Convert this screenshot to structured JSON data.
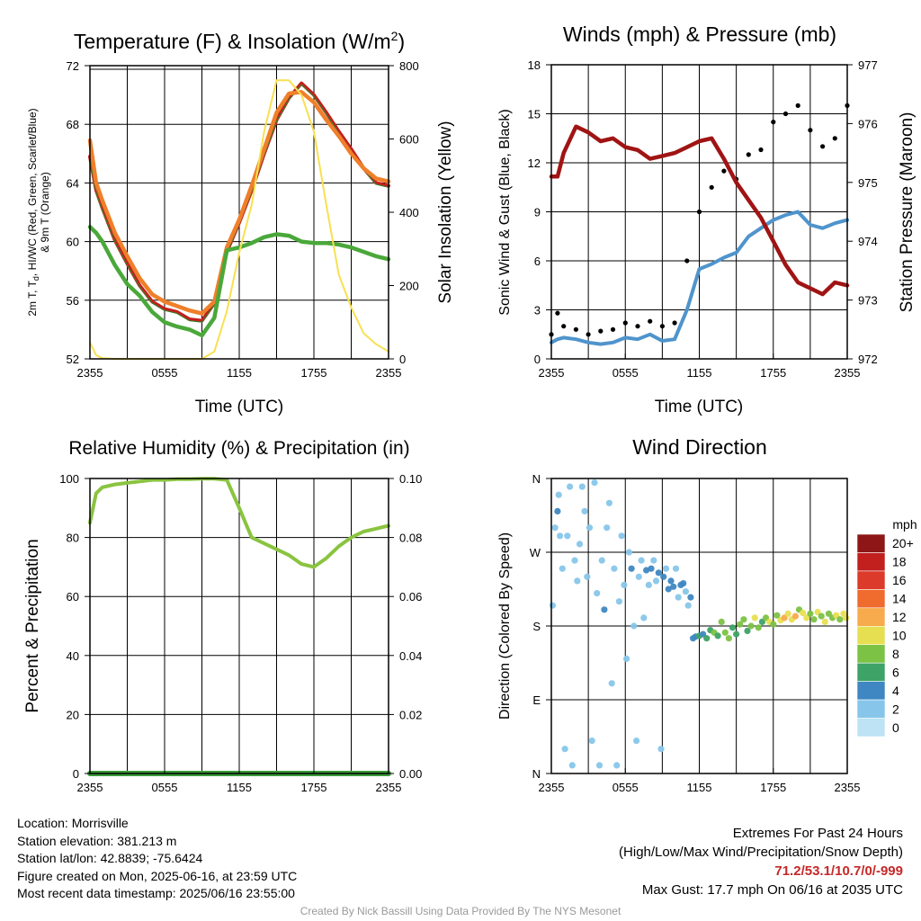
{
  "colors": {
    "temp": "#c41e1e",
    "dewpoint": "#4aa83a",
    "heat_index": "#2a8a2a",
    "t9m": "#f07f2a",
    "insolation": "#f8e050",
    "wind": "#4f94cc",
    "gust": "#000000",
    "pressure": "#a01414",
    "rh": "#8ac440",
    "precip": "#3a9a3a",
    "extremes": "#c62828",
    "speed_scale": [
      "#bde3f5",
      "#87c6ea",
      "#3f87c2",
      "#3da366",
      "#7cc244",
      "#e7df52",
      "#f7ab4c",
      "#ef6b2e",
      "#dc3a2a",
      "#c21f1f",
      "#8e1616"
    ]
  },
  "chart_data": [
    {
      "id": "temperature",
      "type": "line",
      "title": "Temperature (F) & Insolation (W/m²)",
      "title_main": "Temperature (F) & Insolation (W/m",
      "title_sup": "2",
      "title_end": ")",
      "xlabel": "Time (UTC)",
      "ylabel_line1": "2m T, T",
      "ylabel_sub": "d",
      "ylabel_line1_rest": ", HI/WC (Red, Green, Scarlet/Blue)",
      "ylabel_line2": "& 9m T (Orange)",
      "y2label": "Solar Insolation (Yellow)",
      "xticks": [
        "2355",
        "0555",
        "1155",
        "1755",
        "2355"
      ],
      "ylim": [
        52,
        72
      ],
      "yticks": [
        "52",
        "56",
        "60",
        "64",
        "68",
        "72"
      ],
      "y2lim": [
        0,
        800
      ],
      "y2ticks": [
        "0",
        "200",
        "400",
        "600",
        "800"
      ],
      "x_hours": [
        0,
        0.5,
        1,
        2,
        3,
        4,
        5,
        6,
        7,
        8,
        9,
        10,
        11,
        12,
        13,
        14,
        15,
        16,
        17,
        18,
        19,
        20,
        21,
        22,
        23,
        24
      ],
      "series": [
        {
          "key": "t2m",
          "axis": "left",
          "values": [
            65.8,
            63.5,
            62.3,
            60.1,
            58.5,
            57.0,
            55.9,
            55.4,
            55.2,
            54.7,
            54.6,
            55.8,
            59.3,
            61.3,
            63.5,
            66.0,
            68.3,
            69.8,
            70.8,
            70.0,
            68.8,
            67.5,
            66.3,
            65.0,
            64.0,
            63.8
          ]
        },
        {
          "key": "heat_index",
          "axis": "left",
          "values": [
            65.6,
            63.3,
            62.1,
            60.0,
            58.4,
            56.9,
            55.8,
            55.3,
            55.1,
            54.6,
            54.5,
            55.7,
            59.2,
            61.2,
            63.4,
            65.9,
            68.2,
            69.7,
            70.7,
            69.9,
            68.7,
            67.4,
            66.2,
            64.9,
            63.9,
            63.7
          ]
        },
        {
          "key": "t9m",
          "axis": "left",
          "values": [
            66.9,
            64.0,
            62.8,
            60.6,
            59.0,
            57.5,
            56.4,
            55.9,
            55.6,
            55.3,
            55.1,
            55.9,
            59.6,
            61.5,
            63.8,
            66.3,
            68.8,
            70.1,
            70.2,
            69.5,
            68.3,
            67.2,
            66.0,
            65.0,
            64.3,
            64.1
          ]
        },
        {
          "key": "dewpoint",
          "axis": "left",
          "values": [
            61.0,
            60.6,
            60.0,
            58.4,
            57.1,
            56.3,
            55.2,
            54.5,
            54.2,
            54.0,
            53.6,
            54.8,
            59.4,
            59.6,
            59.9,
            60.3,
            60.5,
            60.4,
            60.0,
            59.9,
            59.9,
            59.8,
            59.6,
            59.3,
            59.0,
            58.8
          ]
        },
        {
          "key": "insolation",
          "axis": "right",
          "values": [
            45,
            10,
            2,
            0,
            0,
            0,
            0,
            0,
            0,
            0,
            0,
            20,
            130,
            290,
            420,
            620,
            760,
            760,
            720,
            620,
            420,
            230,
            140,
            70,
            40,
            20
          ]
        }
      ]
    },
    {
      "id": "winds",
      "type": "line",
      "title": "Winds (mph) & Pressure (mb)",
      "xlabel": "Time (UTC)",
      "ylabel": "Sonic Wind & Gust (Blue, Black)",
      "y2label": "Station Pressure (Maroon)",
      "xticks": [
        "2355",
        "0555",
        "1155",
        "1755",
        "2355"
      ],
      "ylim": [
        0,
        18
      ],
      "yticks": [
        "0",
        "3",
        "6",
        "9",
        "12",
        "15",
        "18"
      ],
      "y2lim": [
        972,
        977
      ],
      "y2ticks": [
        "972",
        "973",
        "974",
        "975",
        "976",
        "977"
      ],
      "x_hours": [
        0,
        0.5,
        1,
        2,
        3,
        4,
        5,
        6,
        7,
        8,
        9,
        10,
        11,
        12,
        13,
        14,
        15,
        16,
        17,
        18,
        19,
        20,
        21,
        22,
        23,
        24
      ],
      "series": [
        {
          "key": "wind",
          "axis": "left",
          "values": [
            1.0,
            1.2,
            1.3,
            1.2,
            1.0,
            0.9,
            1.0,
            1.3,
            1.2,
            1.5,
            1.1,
            1.2,
            3.0,
            5.5,
            5.8,
            6.2,
            6.5,
            7.5,
            8.0,
            8.5,
            8.8,
            9.0,
            8.2,
            8.0,
            8.3,
            8.5
          ]
        },
        {
          "key": "gust",
          "axis": "left",
          "values": [
            1.5,
            2.8,
            2.0,
            1.8,
            1.5,
            1.7,
            1.8,
            2.2,
            2.0,
            2.3,
            2.0,
            2.2,
            6.0,
            9.0,
            10.5,
            11.5,
            11.0,
            12.5,
            12.8,
            14.5,
            15.0,
            15.5,
            14.0,
            13.0,
            13.5,
            15.5
          ]
        },
        {
          "key": "pressure",
          "axis": "right",
          "values": [
            975.1,
            975.1,
            975.5,
            975.95,
            975.85,
            975.7,
            975.75,
            975.6,
            975.55,
            975.4,
            975.45,
            975.5,
            975.6,
            975.7,
            975.75,
            975.4,
            975.0,
            974.7,
            974.4,
            974.0,
            973.6,
            973.3,
            973.2,
            973.1,
            973.3,
            973.25
          ]
        }
      ]
    },
    {
      "id": "humidity",
      "type": "line",
      "title": "Relative Humidity (%) & Precipitation (in)",
      "ylabel": "Percent & Precipitation",
      "xticks": [
        "2355",
        "0555",
        "1155",
        "1755",
        "2355"
      ],
      "ylim": [
        0,
        100
      ],
      "yticks": [
        "0",
        "20",
        "40",
        "60",
        "80",
        "100"
      ],
      "y2lim": [
        0,
        0.1
      ],
      "y2ticks": [
        "0.00",
        "0.02",
        "0.04",
        "0.06",
        "0.08",
        "0.10"
      ],
      "x_hours": [
        0,
        0.5,
        1,
        2,
        3,
        4,
        5,
        6,
        7,
        8,
        9,
        10,
        11,
        12,
        13,
        14,
        15,
        16,
        17,
        18,
        19,
        20,
        21,
        22,
        23,
        24
      ],
      "series": [
        {
          "key": "rh",
          "axis": "left",
          "values": [
            85,
            95,
            97,
            98,
            98.5,
            99,
            99.5,
            99.5,
            99.8,
            99.8,
            99.9,
            99.9,
            99.5,
            90,
            80,
            78,
            76,
            74,
            71,
            70,
            73,
            77,
            80,
            82,
            83,
            84
          ]
        },
        {
          "key": "precip",
          "axis": "right",
          "values": [
            0,
            0,
            0,
            0,
            0,
            0,
            0,
            0,
            0,
            0,
            0,
            0,
            0,
            0,
            0,
            0,
            0,
            0,
            0,
            0,
            0,
            0,
            0,
            0,
            0,
            0
          ]
        }
      ]
    },
    {
      "id": "wind_direction",
      "type": "scatter",
      "title": "Wind Direction",
      "ylabel": "Direction (Colored By Speed)",
      "xticks": [
        "2355",
        "0555",
        "1155",
        "1755",
        "2355"
      ],
      "yticks": [
        "N",
        "E",
        "S",
        "W",
        "N"
      ],
      "ylim": [
        0,
        360
      ],
      "colorbar": {
        "title": "mph",
        "labels": [
          "0",
          "2",
          "4",
          "6",
          "8",
          "10",
          "12",
          "14",
          "16",
          "18",
          "20+"
        ]
      },
      "points": [
        [
          0.1,
          205,
          1
        ],
        [
          0.3,
          300,
          2
        ],
        [
          0.5,
          320,
          3
        ],
        [
          0.6,
          340,
          1
        ],
        [
          0.7,
          290,
          2
        ],
        [
          0.9,
          250,
          1
        ],
        [
          1.1,
          30,
          1
        ],
        [
          1.3,
          290,
          2
        ],
        [
          1.5,
          350,
          1
        ],
        [
          1.7,
          10,
          1
        ],
        [
          1.9,
          260,
          1
        ],
        [
          2.1,
          235,
          2
        ],
        [
          2.3,
          280,
          1
        ],
        [
          2.5,
          350,
          1
        ],
        [
          2.7,
          320,
          2
        ],
        [
          2.9,
          240,
          1
        ],
        [
          3.1,
          300,
          1
        ],
        [
          3.3,
          40,
          1
        ],
        [
          3.5,
          355,
          1
        ],
        [
          3.7,
          220,
          2
        ],
        [
          3.9,
          10,
          1
        ],
        [
          4.1,
          260,
          1
        ],
        [
          4.3,
          200,
          3
        ],
        [
          4.5,
          300,
          1
        ],
        [
          4.7,
          330,
          1
        ],
        [
          4.9,
          110,
          1
        ],
        [
          5.1,
          250,
          2
        ],
        [
          5.3,
          10,
          1
        ],
        [
          5.5,
          210,
          1
        ],
        [
          5.7,
          290,
          1
        ],
        [
          5.9,
          230,
          2
        ],
        [
          6.1,
          140,
          1
        ],
        [
          6.3,
          270,
          1
        ],
        [
          6.5,
          250,
          3
        ],
        [
          6.7,
          180,
          1
        ],
        [
          6.9,
          40,
          1
        ],
        [
          7.1,
          240,
          2
        ],
        [
          7.3,
          260,
          1
        ],
        [
          7.5,
          190,
          1
        ],
        [
          7.7,
          248,
          3
        ],
        [
          7.9,
          230,
          2
        ],
        [
          8.1,
          250,
          3
        ],
        [
          8.3,
          260,
          1
        ],
        [
          8.5,
          235,
          2
        ],
        [
          8.7,
          245,
          4
        ],
        [
          8.9,
          30,
          1
        ],
        [
          9.1,
          240,
          3
        ],
        [
          9.3,
          250,
          2
        ],
        [
          9.5,
          225,
          3
        ],
        [
          9.7,
          235,
          4
        ],
        [
          9.9,
          228,
          3
        ],
        [
          10.1,
          250,
          2
        ],
        [
          10.3,
          215,
          2
        ],
        [
          10.5,
          230,
          3
        ],
        [
          10.7,
          232,
          4
        ],
        [
          10.9,
          222,
          2
        ],
        [
          11.1,
          205,
          1
        ],
        [
          11.3,
          215,
          3
        ],
        [
          11.5,
          165,
          4
        ],
        [
          11.7,
          167,
          4
        ],
        [
          12.0,
          168,
          5
        ],
        [
          12.3,
          170,
          4
        ],
        [
          12.6,
          165,
          6
        ],
        [
          12.9,
          175,
          5
        ],
        [
          13.2,
          172,
          7
        ],
        [
          13.5,
          168,
          6
        ],
        [
          13.8,
          185,
          7
        ],
        [
          14.1,
          172,
          8
        ],
        [
          14.4,
          165,
          7
        ],
        [
          14.7,
          178,
          6
        ],
        [
          15.0,
          170,
          5
        ],
        [
          15.3,
          182,
          8
        ],
        [
          15.6,
          188,
          7
        ],
        [
          15.9,
          174,
          6
        ],
        [
          16.2,
          180,
          8
        ],
        [
          16.5,
          190,
          9
        ],
        [
          16.8,
          178,
          7
        ],
        [
          17.1,
          185,
          6
        ],
        [
          17.4,
          190,
          8
        ],
        [
          17.7,
          185,
          9
        ],
        [
          18.0,
          182,
          7
        ],
        [
          18.3,
          193,
          8
        ],
        [
          18.6,
          187,
          10
        ],
        [
          18.9,
          190,
          11
        ],
        [
          19.2,
          195,
          10
        ],
        [
          19.5,
          188,
          9
        ],
        [
          19.8,
          192,
          11
        ],
        [
          20.1,
          200,
          8
        ],
        [
          20.4,
          196,
          10
        ],
        [
          20.7,
          190,
          9
        ],
        [
          21.0,
          195,
          8
        ],
        [
          21.3,
          188,
          7
        ],
        [
          21.6,
          197,
          9
        ],
        [
          21.9,
          192,
          8
        ],
        [
          22.2,
          185,
          9
        ],
        [
          22.5,
          195,
          7
        ],
        [
          22.8,
          190,
          8
        ],
        [
          23.1,
          193,
          9
        ],
        [
          23.4,
          188,
          8
        ],
        [
          23.7,
          195,
          10
        ],
        [
          23.9,
          190,
          9
        ]
      ]
    }
  ],
  "footer": {
    "location": "Location: Morrisville",
    "elevation": "Station elevation: 381.213 m",
    "latlon": "Station lat/lon: 42.8839; -75.6424",
    "created": "Figure created on Mon, 2025-06-16, at 23:59 UTC",
    "recent": "Most recent data timestamp: 2025/06/16 23:55:00",
    "extremes_title": "Extremes For Past 24 Hours",
    "extremes_legend": "(High/Low/Max Wind/Precipitation/Snow Depth)",
    "extremes_values": "71.2/53.1/10.7/0/-999",
    "max_gust": "Max Gust: 17.7 mph On 06/16 at 2035 UTC",
    "credit": "Created By Nick Bassill Using Data Provided By The NYS Mesonet"
  }
}
